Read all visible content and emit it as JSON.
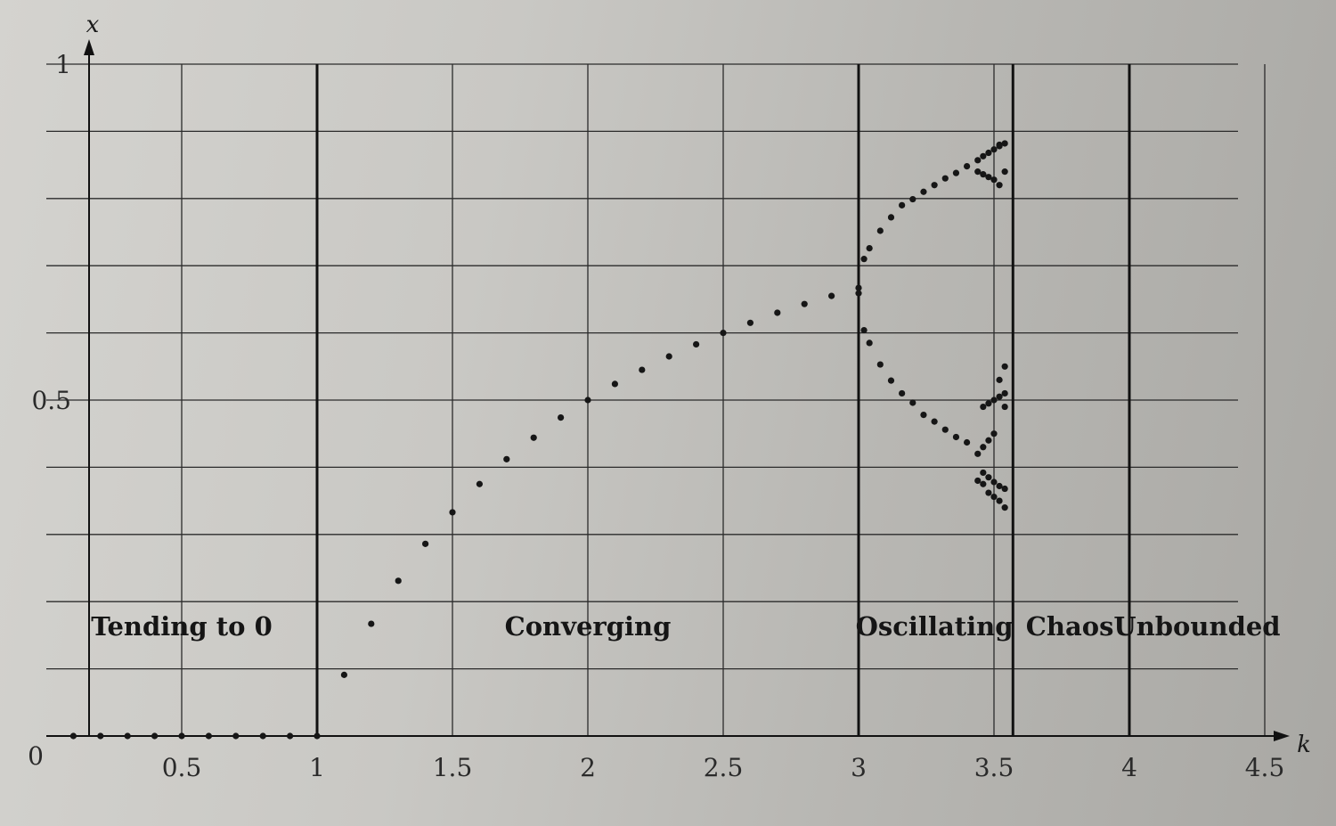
{
  "chart_data": {
    "type": "scatter",
    "xlabel": "x",
    "klabel": "k",
    "xlim": [
      0,
      4.5
    ],
    "ylim": [
      0,
      1
    ],
    "grid": true,
    "x_ticks": [
      {
        "value": 0.5,
        "label": "0.5"
      },
      {
        "value": 1,
        "label": "1"
      },
      {
        "value": 1.5,
        "label": "1.5"
      },
      {
        "value": 2,
        "label": "2"
      },
      {
        "value": 2.5,
        "label": "2.5"
      },
      {
        "value": 3,
        "label": "3"
      },
      {
        "value": 3.5,
        "label": "3.5"
      },
      {
        "value": 4,
        "label": "4"
      },
      {
        "value": 4.5,
        "label": "4.5"
      }
    ],
    "y_ticks": [
      {
        "value": 0.5,
        "label": "0.5"
      },
      {
        "value": 1,
        "label": "1"
      }
    ],
    "origin_label": "0",
    "y_gridlines": [
      0.1,
      0.2,
      0.3,
      0.4,
      0.5,
      0.6,
      0.7,
      0.8,
      0.9,
      1.0
    ],
    "x_gridlines": [
      0.5,
      1.5,
      2,
      2.5,
      3.5,
      4.5
    ],
    "region_boundaries": [
      1,
      3,
      3.57,
      4
    ],
    "regions": [
      {
        "label": "Tending to 0",
        "k_center": 0.5
      },
      {
        "label": "Converging",
        "k_center": 2.0
      },
      {
        "label": "Oscillating",
        "k_center": 3.28
      },
      {
        "label": "Chaos",
        "k_center": 3.78
      },
      {
        "label": "Unbounded",
        "k_center": 4.25
      }
    ],
    "points": [
      [
        0.1,
        0
      ],
      [
        0.2,
        0
      ],
      [
        0.3,
        0
      ],
      [
        0.4,
        0
      ],
      [
        0.5,
        0
      ],
      [
        0.6,
        0
      ],
      [
        0.7,
        0
      ],
      [
        0.8,
        0
      ],
      [
        0.9,
        0
      ],
      [
        1.0,
        0
      ],
      [
        1.1,
        0.091
      ],
      [
        1.2,
        0.167
      ],
      [
        1.3,
        0.231
      ],
      [
        1.4,
        0.286
      ],
      [
        1.5,
        0.333
      ],
      [
        1.6,
        0.375
      ],
      [
        1.7,
        0.412
      ],
      [
        1.8,
        0.444
      ],
      [
        1.9,
        0.474
      ],
      [
        2.0,
        0.5
      ],
      [
        2.1,
        0.524
      ],
      [
        2.2,
        0.545
      ],
      [
        2.3,
        0.565
      ],
      [
        2.4,
        0.583
      ],
      [
        2.5,
        0.6
      ],
      [
        2.6,
        0.615
      ],
      [
        2.7,
        0.63
      ],
      [
        2.8,
        0.643
      ],
      [
        2.9,
        0.655
      ],
      [
        3.0,
        0.667
      ],
      [
        3.0,
        0.659
      ],
      [
        3.02,
        0.71
      ],
      [
        3.04,
        0.726
      ],
      [
        3.08,
        0.752
      ],
      [
        3.12,
        0.772
      ],
      [
        3.16,
        0.79
      ],
      [
        3.2,
        0.799
      ],
      [
        3.24,
        0.81
      ],
      [
        3.28,
        0.82
      ],
      [
        3.32,
        0.83
      ],
      [
        3.36,
        0.838
      ],
      [
        3.4,
        0.848
      ],
      [
        3.44,
        0.857
      ],
      [
        3.46,
        0.863
      ],
      [
        3.48,
        0.868
      ],
      [
        3.5,
        0.873
      ],
      [
        3.52,
        0.878
      ],
      [
        3.54,
        0.882
      ],
      [
        3.02,
        0.604
      ],
      [
        3.04,
        0.585
      ],
      [
        3.08,
        0.553
      ],
      [
        3.12,
        0.529
      ],
      [
        3.16,
        0.51
      ],
      [
        3.2,
        0.496
      ],
      [
        3.24,
        0.478
      ],
      [
        3.28,
        0.468
      ],
      [
        3.32,
        0.456
      ],
      [
        3.36,
        0.445
      ],
      [
        3.4,
        0.437
      ],
      [
        3.44,
        0.42
      ],
      [
        3.46,
        0.43
      ],
      [
        3.48,
        0.44
      ],
      [
        3.5,
        0.45
      ],
      [
        3.44,
        0.84
      ],
      [
        3.46,
        0.836
      ],
      [
        3.48,
        0.832
      ],
      [
        3.5,
        0.828
      ],
      [
        3.52,
        0.82
      ],
      [
        3.54,
        0.84
      ],
      [
        3.46,
        0.392
      ],
      [
        3.48,
        0.385
      ],
      [
        3.5,
        0.378
      ],
      [
        3.52,
        0.372
      ],
      [
        3.54,
        0.368
      ],
      [
        3.44,
        0.38
      ],
      [
        3.46,
        0.375
      ],
      [
        3.48,
        0.362
      ],
      [
        3.5,
        0.356
      ],
      [
        3.52,
        0.35
      ],
      [
        3.54,
        0.34
      ],
      [
        3.46,
        0.49
      ],
      [
        3.48,
        0.495
      ],
      [
        3.5,
        0.5
      ],
      [
        3.52,
        0.505
      ],
      [
        3.54,
        0.51
      ],
      [
        3.52,
        0.53
      ],
      [
        3.54,
        0.55
      ],
      [
        3.52,
        0.88
      ],
      [
        3.54,
        0.49
      ]
    ]
  }
}
